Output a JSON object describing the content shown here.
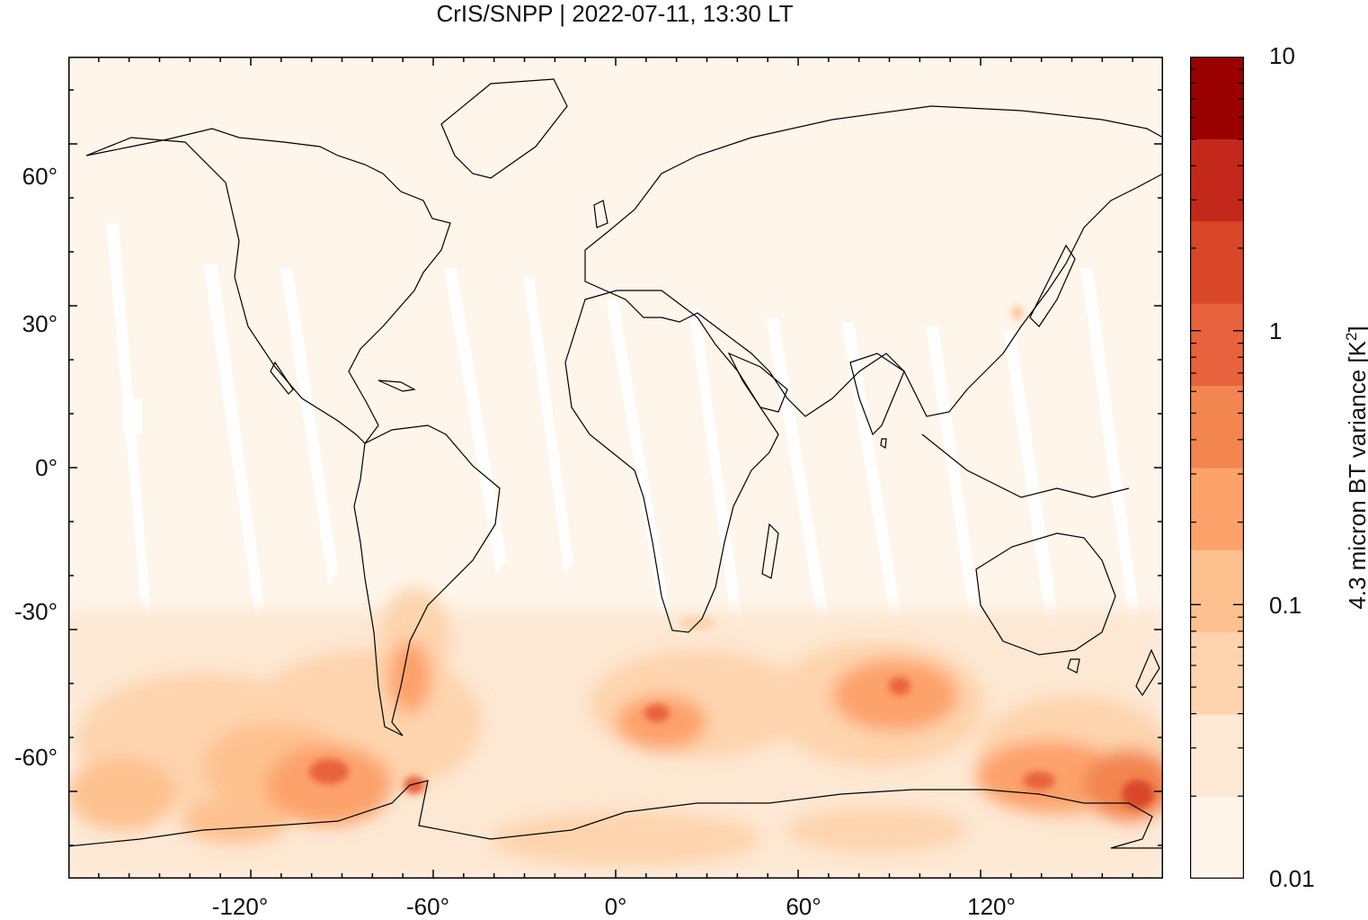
{
  "title": "CrIS/SNPP | 2022-07-11, 13:30 LT",
  "colors": {
    "background": "#fef5eb",
    "gap": "#ffffff",
    "coast": "#000000",
    "levels": [
      "#fff5eb",
      "#fde8d3",
      "#fdd4ad",
      "#fdc18f",
      "#fda26b",
      "#f38550",
      "#e8623d",
      "#d94729",
      "#c4281b",
      "#9a0000"
    ]
  },
  "y_ticks": [
    {
      "label": "60°"
    },
    {
      "label": "30°"
    },
    {
      "label": "0°"
    },
    {
      "label": "-30°"
    },
    {
      "label": "-60°"
    }
  ],
  "x_ticks": [
    {
      "label": "-120°"
    },
    {
      "label": "-60°"
    },
    {
      "label": "0°"
    },
    {
      "label": "60°"
    },
    {
      "label": "120°"
    }
  ],
  "colorbar": {
    "title_main": "4.3 micron BT variance [K",
    "title_sup": "2",
    "title_end": "]",
    "labels": [
      {
        "label": "10"
      },
      {
        "label": "1"
      },
      {
        "label": "0.1"
      },
      {
        "label": "0.01"
      }
    ]
  }
}
